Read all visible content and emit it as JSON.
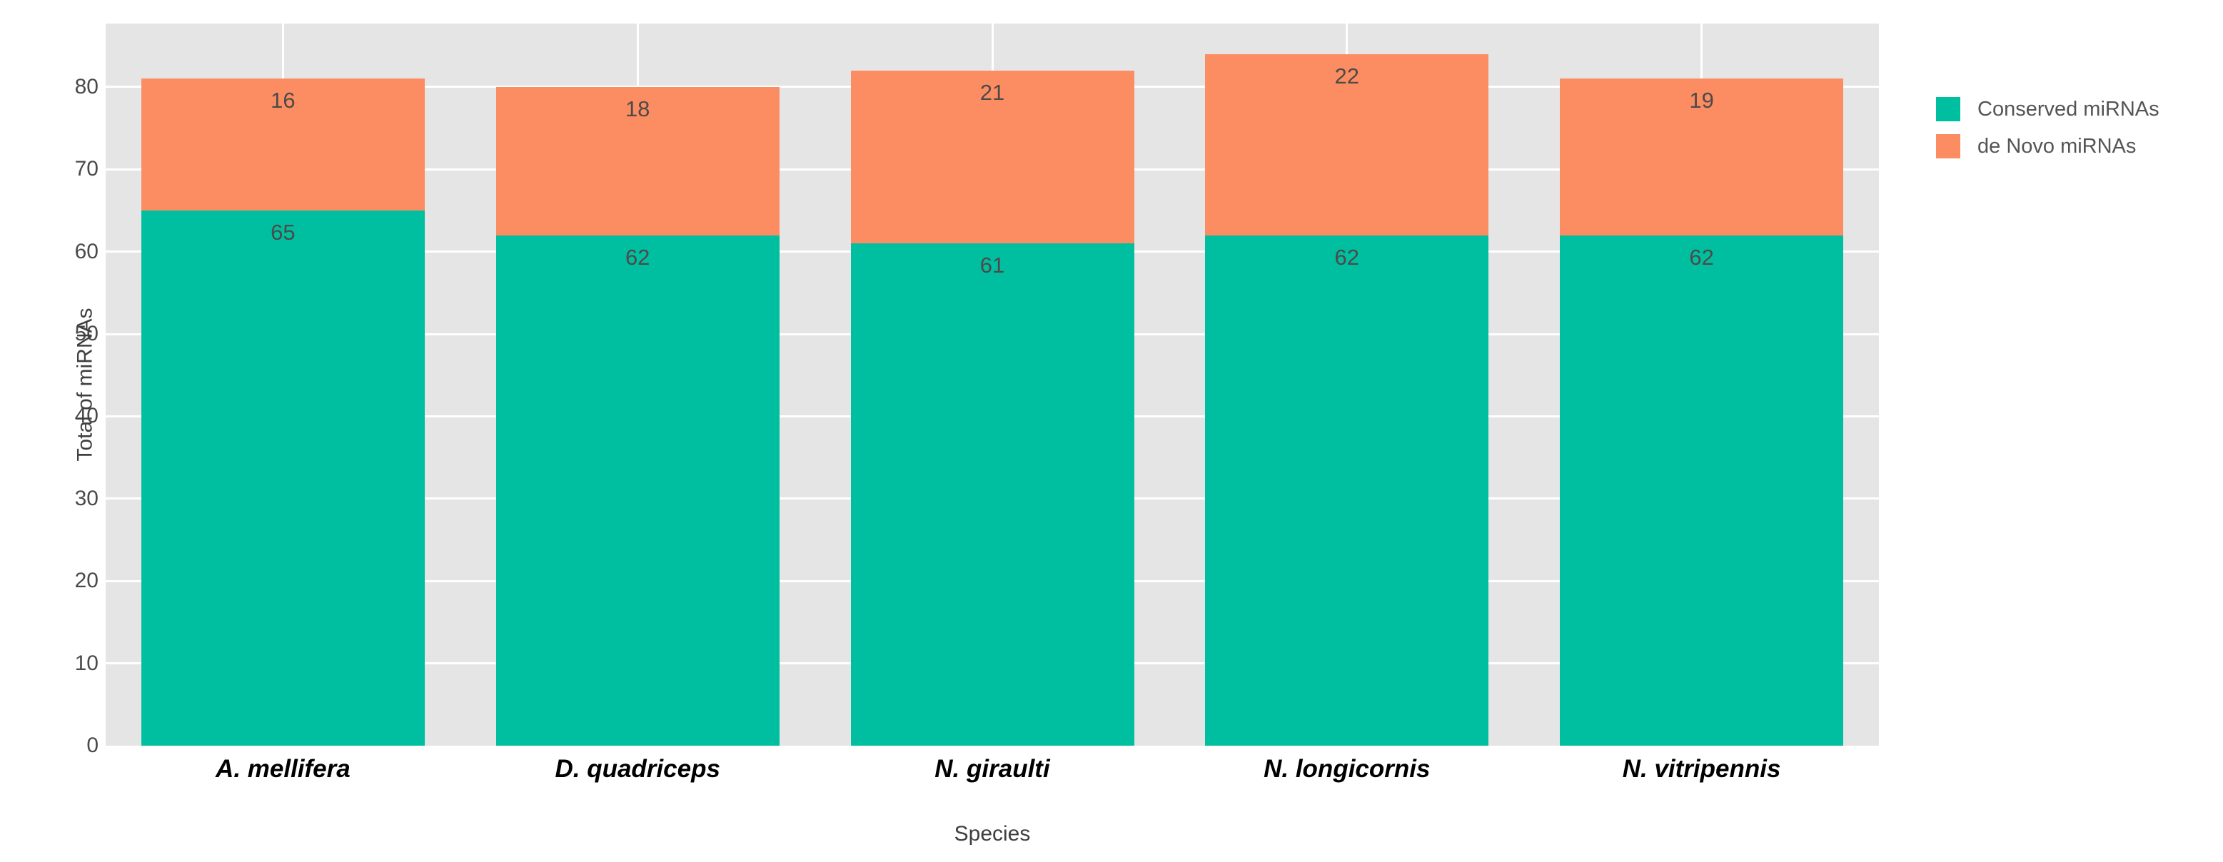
{
  "chart_data": {
    "type": "bar",
    "stacked": true,
    "title": "",
    "xlabel": "Species",
    "ylabel": "Total of miRNAs",
    "categories": [
      "A. mellifera",
      "D. quadriceps",
      "N. giraulti",
      "N. longicornis",
      "N. vitripennis"
    ],
    "series": [
      {
        "name": "Conserved miRNAs",
        "color": "#00bfa0",
        "values": [
          65,
          62,
          61,
          62,
          62
        ]
      },
      {
        "name": "de Novo miRNAs",
        "color": "#fc8d62",
        "values": [
          16,
          18,
          21,
          22,
          19
        ]
      }
    ],
    "yticks": [
      0,
      10,
      20,
      30,
      40,
      50,
      60,
      70,
      80
    ],
    "ylim": [
      0,
      87.7
    ],
    "grid": true,
    "panel_background": "#e5e5e5",
    "gridline_color": "#ffffff",
    "legend_position": "right"
  }
}
